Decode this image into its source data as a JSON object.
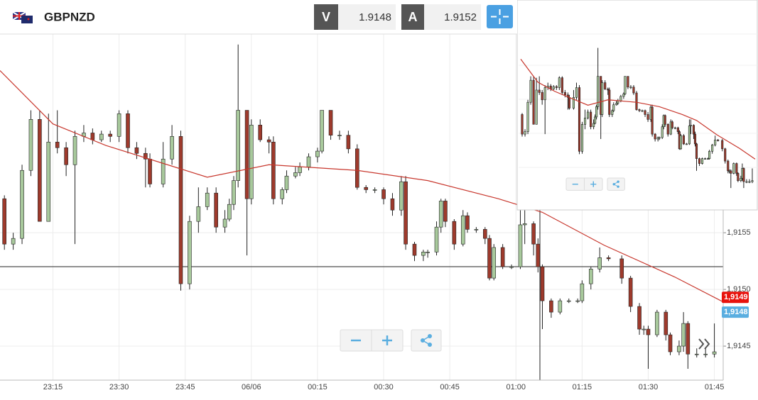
{
  "header": {
    "symbol": "GBPNZD",
    "bid_label": "V",
    "bid": "1.9148",
    "ask_label": "A",
    "ask": "1.9152"
  },
  "chart_data": {
    "type": "candlestick",
    "x": [
      4,
      6,
      8,
      10,
      12,
      14,
      16,
      18,
      20,
      22,
      24,
      26,
      28,
      30,
      32,
      34,
      36,
      37,
      40,
      42,
      44,
      46,
      48,
      50,
      52,
      54,
      55,
      56,
      57,
      59,
      60,
      62,
      64,
      65,
      67,
      68,
      70,
      71,
      73,
      75,
      76,
      78,
      80,
      82,
      84,
      86,
      88,
      90,
      92,
      94,
      95,
      97,
      99,
      100,
      102,
      103,
      104,
      106,
      108,
      109,
      111,
      113,
      114,
      115,
      117,
      119,
      121,
      122,
      124,
      125,
      126,
      128,
      130,
      132,
      134,
      135,
      137,
      139,
      141,
      144,
      146,
      148,
      149,
      150,
      152,
      154,
      155,
      157,
      158,
      159,
      161,
      163,
      165
    ],
    "open": [
      1.9158,
      1.9154,
      1.91545,
      1.91605,
      1.9165,
      1.9156,
      1.9163,
      1.91625,
      1.9161,
      1.91635,
      1.91638,
      1.91632,
      1.91637,
      1.91635,
      1.91655,
      1.91625,
      1.9162,
      1.91615,
      1.91593,
      1.91615,
      1.91635,
      1.91505,
      1.9156,
      1.91573,
      1.91585,
      1.91555,
      1.91562,
      1.91575,
      1.91596,
      1.91658,
      1.9158,
      1.91645,
      1.91632,
      1.9163,
      1.9158,
      1.91588,
      1.916,
      1.91603,
      1.91608,
      1.91617,
      1.91622,
      1.91658,
      1.91636,
      1.91636,
      1.91624,
      1.9159,
      1.91588,
      1.91588,
      1.9158,
      1.9157,
      1.91595,
      1.9154,
      1.9153,
      1.91533,
      1.91533,
      1.91555,
      1.91578,
      1.9156,
      1.9154,
      1.91565,
      1.91553,
      1.91553,
      1.91545,
      1.9151,
      1.91537,
      1.9152,
      1.9152,
      1.91557,
      1.91558,
      1.9154,
      1.9152,
      1.9149,
      1.9148,
      1.9149,
      1.9149,
      1.9149,
      1.91505,
      1.91518,
      1.91528,
      1.91527,
      1.9151,
      1.91485,
      1.91465,
      1.91465,
      1.9146,
      1.9148,
      1.9146,
      1.91445,
      1.9145,
      1.9147,
      1.91443,
      1.91443,
      1.91443
    ],
    "high": [
      1.91583,
      1.9155,
      1.9161,
      1.91658,
      1.91658,
      1.91655,
      1.91658,
      1.9163,
      1.9164,
      1.91645,
      1.91642,
      1.9164,
      1.9164,
      1.91658,
      1.91658,
      1.9163,
      1.91625,
      1.9162,
      1.9163,
      1.91645,
      1.9164,
      1.91565,
      1.9159,
      1.9159,
      1.9159,
      1.9157,
      1.9158,
      1.916,
      1.91716,
      1.91658,
      1.9165,
      1.9165,
      1.91635,
      1.91635,
      1.9159,
      1.91605,
      1.91608,
      1.91612,
      1.9162,
      1.91625,
      1.91658,
      1.91658,
      1.9164,
      1.9164,
      1.91628,
      1.91592,
      1.9159,
      1.9159,
      1.91585,
      1.916,
      1.916,
      1.91542,
      1.91535,
      1.91535,
      1.9156,
      1.9158,
      1.9158,
      1.91562,
      1.9157,
      1.91568,
      1.91555,
      1.91555,
      1.91548,
      1.9154,
      1.9154,
      1.91522,
      1.9157,
      1.9157,
      1.9156,
      1.91545,
      1.91522,
      1.91492,
      1.91492,
      1.91492,
      1.91492,
      1.91508,
      1.9152,
      1.91537,
      1.9153,
      1.9153,
      1.91512,
      1.91488,
      1.91468,
      1.91468,
      1.91482,
      1.91482,
      1.91462,
      1.91455,
      1.9148,
      1.91472,
      1.91448,
      1.91448,
      1.9147
    ],
    "low": [
      1.91535,
      1.91535,
      1.9154,
      1.916,
      1.9156,
      1.9156,
      1.9162,
      1.916,
      1.9154,
      1.9163,
      1.91628,
      1.9163,
      1.9163,
      1.9163,
      1.9162,
      1.91615,
      1.9159,
      1.9159,
      1.9159,
      1.9161,
      1.91499,
      1.915,
      1.9155,
      1.9157,
      1.9155,
      1.9155,
      1.9156,
      1.9157,
      1.9159,
      1.9153,
      1.91575,
      1.9163,
      1.9162,
      1.91575,
      1.91575,
      1.91585,
      1.91598,
      1.916,
      1.91605,
      1.91612,
      1.9162,
      1.91632,
      1.91632,
      1.9162,
      1.91588,
      1.91585,
      1.91585,
      1.91575,
      1.91565,
      1.91565,
      1.91535,
      1.91525,
      1.91525,
      1.91528,
      1.9153,
      1.9155,
      1.91555,
      1.91535,
      1.91538,
      1.9155,
      1.9155,
      1.9154,
      1.91508,
      1.91508,
      1.91518,
      1.91518,
      1.91518,
      1.9154,
      1.9153,
      1.91515,
      1.91465,
      1.91475,
      1.91478,
      1.91488,
      1.91488,
      1.91488,
      1.915,
      1.91515,
      1.91525,
      1.91505,
      1.9148,
      1.9146,
      1.9146,
      1.9143,
      1.91458,
      1.91455,
      1.91442,
      1.91442,
      1.91445,
      1.9143,
      1.9144,
      1.9144,
      1.9144
    ],
    "close": [
      1.9154,
      1.91545,
      1.91605,
      1.9165,
      1.9156,
      1.9163,
      1.91625,
      1.9161,
      1.91635,
      1.91638,
      1.91632,
      1.91637,
      1.91635,
      1.91655,
      1.91625,
      1.9162,
      1.91615,
      1.91593,
      1.91615,
      1.91635,
      1.91505,
      1.9156,
      1.91573,
      1.91585,
      1.91555,
      1.91562,
      1.91575,
      1.91596,
      1.91658,
      1.9158,
      1.91645,
      1.91632,
      1.9163,
      1.9158,
      1.91588,
      1.916,
      1.91603,
      1.91608,
      1.91617,
      1.91622,
      1.91658,
      1.91636,
      1.91636,
      1.91624,
      1.9159,
      1.91588,
      1.91588,
      1.9158,
      1.9157,
      1.91595,
      1.9154,
      1.9153,
      1.91533,
      1.91533,
      1.91555,
      1.91578,
      1.9156,
      1.9154,
      1.91565,
      1.91553,
      1.91553,
      1.91545,
      1.9151,
      1.91537,
      1.9152,
      1.9152,
      1.91557,
      1.91558,
      1.9154,
      1.9152,
      1.9149,
      1.9148,
      1.9149,
      1.9149,
      1.9149,
      1.91505,
      1.91518,
      1.91528,
      1.91527,
      1.9151,
      1.91485,
      1.91465,
      1.91465,
      1.9146,
      1.9148,
      1.9146,
      1.91445,
      1.9145,
      1.9147,
      1.91443,
      1.91443,
      1.91443,
      1.91445
    ],
    "up_color": "#a8c99c",
    "down_color": "#9e3a2c",
    "moving_average": {
      "x": [
        3,
        15,
        27,
        50,
        64,
        84,
        100,
        116,
        126,
        140,
        156,
        167
      ],
      "values": [
        1.91693,
        1.91646,
        1.91627,
        1.91599,
        1.9161,
        1.91605,
        1.91596,
        1.9158,
        1.91568,
        1.91539,
        1.91511,
        1.91489
      ],
      "color": "#c8372d"
    },
    "xlim": [
      3,
      167
    ],
    "ylim": [
      1.9142,
      1.91724
    ],
    "xticks": [
      {
        "value": 15,
        "label": "23:15"
      },
      {
        "value": 30,
        "label": "23:30"
      },
      {
        "value": 45,
        "label": "23:45"
      },
      {
        "value": 60,
        "label": "06/06"
      },
      {
        "value": 75,
        "label": "00:15"
      },
      {
        "value": 90,
        "label": "00:30"
      },
      {
        "value": 105,
        "label": "00:45"
      },
      {
        "value": 120,
        "label": "01:00"
      },
      {
        "value": 135,
        "label": "01:15"
      },
      {
        "value": 150,
        "label": "01:30"
      },
      {
        "value": 165,
        "label": "01:45"
      }
    ],
    "yticks": [
      {
        "value": 1.9155,
        "label": "1,9155"
      },
      {
        "value": 1.915,
        "label": "1,9150"
      },
      {
        "value": 1.9145,
        "label": "1,9145"
      }
    ],
    "grid": true,
    "price_tags": [
      {
        "value": 1.91493,
        "label": "1,9149",
        "color": "#e8120c"
      },
      {
        "value": 1.9148,
        "label": "1,9148",
        "color": "#5aaee0"
      }
    ]
  }
}
